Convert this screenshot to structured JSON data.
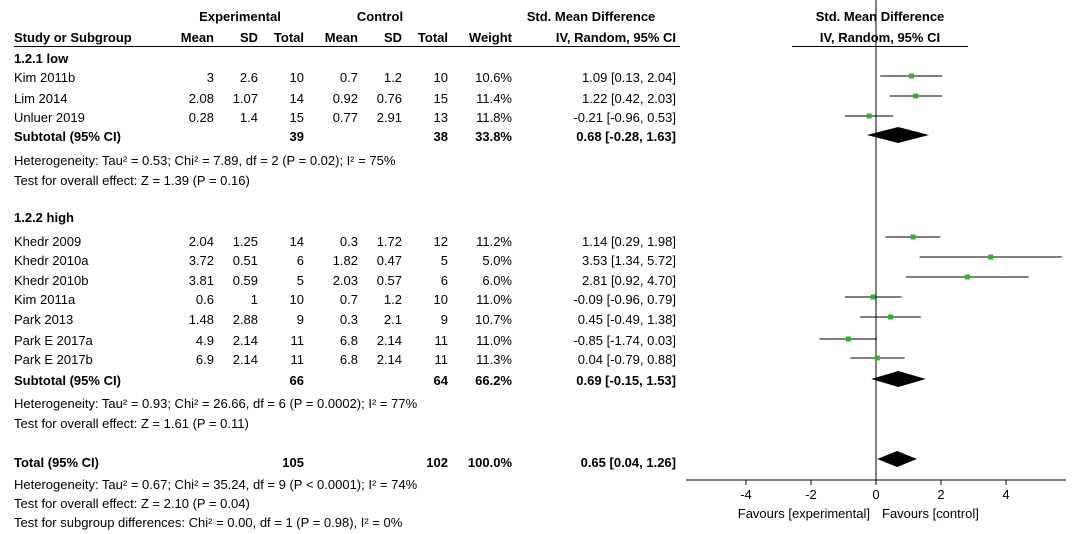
{
  "header": {
    "group1": "Experimental",
    "group2": "Control",
    "effect_title": "Std. Mean Difference",
    "effect_method": "IV, Random, 95% CI",
    "plot_title": "Std. Mean Difference",
    "plot_method": "IV, Random, 95% CI",
    "cols": [
      "Study or Subgroup",
      "Mean",
      "SD",
      "Total",
      "Mean",
      "SD",
      "Total",
      "Weight"
    ]
  },
  "subgroups": [
    {
      "title": "1.2.1 low",
      "studies": [
        {
          "name": "Kim 2011b",
          "m1": "3",
          "sd1": "2.6",
          "n1": "10",
          "m2": "0.7",
          "sd2": "1.2",
          "n2": "10",
          "weight": "10.6%",
          "ci_text": "1.09 [0.13, 2.04]"
        },
        {
          "name": "Lim 2014",
          "m1": "2.08",
          "sd1": "1.07",
          "n1": "14",
          "m2": "0.92",
          "sd2": "0.76",
          "n2": "15",
          "weight": "11.4%",
          "ci_text": "1.22 [0.42, 2.03]"
        },
        {
          "name": "Unluer 2019",
          "m1": "0.28",
          "sd1": "1.4",
          "n1": "15",
          "m2": "0.77",
          "sd2": "2.91",
          "n2": "13",
          "weight": "11.8%",
          "ci_text": "-0.21 [-0.96, 0.53]"
        }
      ],
      "subtotal": {
        "label": "Subtotal (95% CI)",
        "n1": "39",
        "n2": "38",
        "weight": "33.8%",
        "ci_text": "0.68 [-0.28, 1.63]"
      },
      "heterogeneity": "Heterogeneity: Tau² = 0.53; Chi² = 7.89, df = 2 (P = 0.02); I² = 75%",
      "overall": "Test for overall effect: Z = 1.39 (P = 0.16)"
    },
    {
      "title": "1.2.2 high",
      "studies": [
        {
          "name": "Khedr 2009",
          "m1": "2.04",
          "sd1": "1.25",
          "n1": "14",
          "m2": "0.3",
          "sd2": "1.72",
          "n2": "12",
          "weight": "11.2%",
          "ci_text": "1.14 [0.29, 1.98]"
        },
        {
          "name": "Khedr 2010a",
          "m1": "3.72",
          "sd1": "0.51",
          "n1": "6",
          "m2": "1.82",
          "sd2": "0.47",
          "n2": "5",
          "weight": "5.0%",
          "ci_text": "3.53 [1.34, 5.72]"
        },
        {
          "name": "Khedr 2010b",
          "m1": "3.81",
          "sd1": "0.59",
          "n1": "5",
          "m2": "2.03",
          "sd2": "0.57",
          "n2": "6",
          "weight": "6.0%",
          "ci_text": "2.81 [0.92, 4.70]"
        },
        {
          "name": "Kim 2011a",
          "m1": "0.6",
          "sd1": "1",
          "n1": "10",
          "m2": "0.7",
          "sd2": "1.2",
          "n2": "10",
          "weight": "11.0%",
          "ci_text": "-0.09 [-0.96, 0.79]"
        },
        {
          "name": "Park 2013",
          "m1": "1.48",
          "sd1": "2.88",
          "n1": "9",
          "m2": "0.3",
          "sd2": "2.1",
          "n2": "9",
          "weight": "10.7%",
          "ci_text": "0.45 [-0.49, 1.38]"
        },
        {
          "name": "Park E 2017a",
          "m1": "4.9",
          "sd1": "2.14",
          "n1": "11",
          "m2": "6.8",
          "sd2": "2.14",
          "n2": "11",
          "weight": "11.0%",
          "ci_text": "-0.85 [-1.74, 0.03]"
        },
        {
          "name": "Park E 2017b",
          "m1": "6.9",
          "sd1": "2.14",
          "n1": "11",
          "m2": "6.8",
          "sd2": "2.14",
          "n2": "11",
          "weight": "11.3%",
          "ci_text": "0.04 [-0.79, 0.88]"
        }
      ],
      "subtotal": {
        "label": "Subtotal (95% CI)",
        "n1": "66",
        "n2": "64",
        "weight": "66.2%",
        "ci_text": "0.69 [-0.15, 1.53]"
      },
      "heterogeneity": "Heterogeneity: Tau² = 0.93; Chi² = 26.66, df = 6 (P = 0.0002); I² = 77%",
      "overall": "Test for overall effect: Z = 1.61 (P = 0.11)"
    }
  ],
  "total": {
    "label": "Total (95% CI)",
    "n1": "105",
    "n2": "102",
    "weight": "100.0%",
    "ci_text": "0.65 [0.04, 1.26]",
    "heterogeneity": "Heterogeneity: Tau² = 0.67; Chi² = 35.24, df = 9 (P < 0.0001); I² = 74%",
    "overall": "Test for overall effect: Z = 2.10 (P = 0.04)",
    "subgroup_diff": "Test for subgroup differences: Chi² = 0.00, df = 1 (P = 0.98), I² = 0%"
  },
  "footer": {
    "favours_left": "Favours [experimental]",
    "favours_right": "Favours [control]"
  },
  "colors": {
    "point": "#2db32d",
    "line": "#000000",
    "diamond": "#000000"
  },
  "chart_data": {
    "type": "forest",
    "x_ticks": [
      "-4",
      "-2",
      "0",
      "2",
      "4"
    ],
    "xlim": [
      -4,
      6
    ],
    "null_line": 0,
    "studies": [
      {
        "name": "Kim 2011b",
        "est": 1.09,
        "lo": 0.13,
        "hi": 2.04
      },
      {
        "name": "Lim 2014",
        "est": 1.22,
        "lo": 0.42,
        "hi": 2.03
      },
      {
        "name": "Unluer 2019",
        "est": -0.21,
        "lo": -0.96,
        "hi": 0.53
      },
      {
        "name": "Khedr 2009",
        "est": 1.14,
        "lo": 0.29,
        "hi": 1.98
      },
      {
        "name": "Khedr 2010a",
        "est": 3.53,
        "lo": 1.34,
        "hi": 5.72
      },
      {
        "name": "Khedr 2010b",
        "est": 2.81,
        "lo": 0.92,
        "hi": 4.7
      },
      {
        "name": "Kim 2011a",
        "est": -0.09,
        "lo": -0.96,
        "hi": 0.79
      },
      {
        "name": "Park 2013",
        "est": 0.45,
        "lo": -0.49,
        "hi": 1.38
      },
      {
        "name": "Park E 2017a",
        "est": -0.85,
        "lo": -1.74,
        "hi": 0.03
      },
      {
        "name": "Park E 2017b",
        "est": 0.04,
        "lo": -0.79,
        "hi": 0.88
      }
    ],
    "pooled": [
      {
        "name": "Subtotal 1.2.1 low",
        "est": 0.68,
        "lo": -0.28,
        "hi": 1.63
      },
      {
        "name": "Subtotal 1.2.2 high",
        "est": 0.69,
        "lo": -0.15,
        "hi": 1.53
      },
      {
        "name": "Total",
        "est": 0.65,
        "lo": 0.04,
        "hi": 1.26
      }
    ]
  }
}
